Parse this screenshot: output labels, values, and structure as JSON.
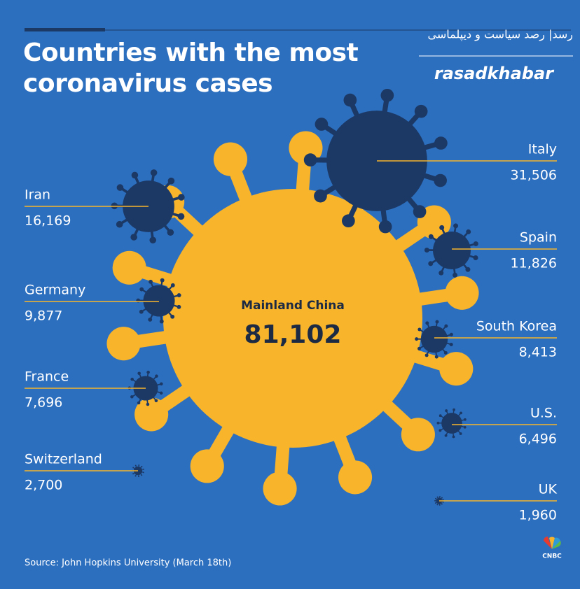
{
  "chart_data": {
    "type": "bubble",
    "title": "Countries with the most coronavirus cases",
    "categories": [
      "Mainland China",
      "Italy",
      "Iran",
      "Spain",
      "Germany",
      "South Korea",
      "France",
      "U.S.",
      "Switzerland",
      "UK"
    ],
    "values": [
      81102,
      31506,
      16169,
      11826,
      9877,
      8413,
      7696,
      6496,
      2700,
      1960
    ],
    "value_labels": [
      "81,102",
      "31,506",
      "16,169",
      "11,826",
      "9,877",
      "8,413",
      "7,696",
      "6,496",
      "2,700",
      "1,960"
    ],
    "color": "#1c3966",
    "highlight_color": "#f8b52b",
    "source": "Source: John Hopkins University (March 18th)"
  },
  "watermark": "رسد| رصد سیاست و دیپلماسی",
  "brand": "rasadkhabar",
  "logo": "CNBC"
}
